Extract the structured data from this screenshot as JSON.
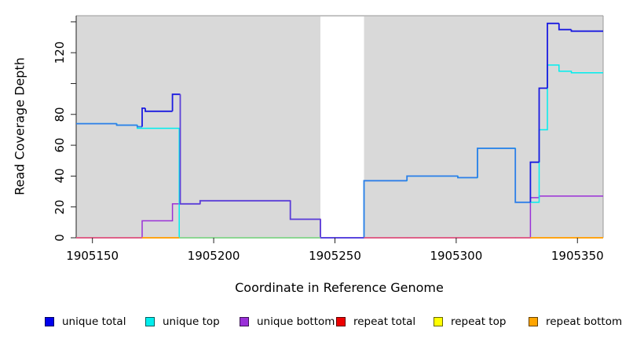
{
  "axes": {
    "x": {
      "title": "Coordinate in Reference Genome",
      "range": [
        1905143.3,
        1905360.6
      ],
      "ticks": [
        1905150,
        1905200,
        1905250,
        1905300,
        1905350
      ]
    },
    "y": {
      "title": "Read Coverage Depth",
      "range": [
        0,
        144
      ],
      "ticks": [
        0,
        20,
        40,
        60,
        80,
        100,
        120,
        140
      ],
      "labeled_ticks": [
        0,
        20,
        40,
        60,
        80,
        120
      ]
    }
  },
  "legend": {
    "items": [
      {
        "label": "unique total",
        "color": "#0000ee"
      },
      {
        "label": "unique top",
        "color": "#00eeee"
      },
      {
        "label": "unique bottom",
        "color": "#9a30d8"
      },
      {
        "label": "repeat total",
        "color": "#ee0000"
      },
      {
        "label": "repeat top",
        "color": "#ffff00"
      },
      {
        "label": "repeat bottom",
        "color": "#ffa500"
      }
    ]
  },
  "colors": {
    "plot_bg": "#d9d9d9",
    "gap_fill": "#ffffff",
    "total_over_top": "#2e7ee8",
    "total_over_bottom": "#5b3fd8",
    "total_pure": "#1a1ae0",
    "zero_when_bottom_zero": "#e0608a",
    "zero_when_top_zero": "#8fd694",
    "zero_when_total_zero": "#5b45e0",
    "zero_when_none_zero": "#ffa216"
  },
  "chart_data": {
    "type": "line",
    "style": "step",
    "title": "",
    "xlabel": "Coordinate in Reference Genome",
    "ylabel": "Read Coverage Depth",
    "xlim": [
      1905143.3,
      1905360.6
    ],
    "ylim": [
      0,
      144
    ],
    "gap_region": [
      1905244,
      1905262
    ],
    "series": [
      {
        "name": "unique total",
        "color": "#1a1ae0",
        "points": [
          [
            1905143.3,
            74
          ],
          [
            1905160,
            73
          ],
          [
            1905168.5,
            72
          ],
          [
            1905170.5,
            84
          ],
          [
            1905171.8,
            82
          ],
          [
            1905183,
            93
          ],
          [
            1905186.2,
            22
          ],
          [
            1905194.4,
            24
          ],
          [
            1905231.6,
            12
          ],
          [
            1905244,
            0
          ],
          [
            1905262,
            37
          ],
          [
            1905279.7,
            40
          ],
          [
            1905300.7,
            39
          ],
          [
            1905308.8,
            58
          ],
          [
            1905324.4,
            23
          ],
          [
            1905330.6,
            49
          ],
          [
            1905334.2,
            97
          ],
          [
            1905337.6,
            139
          ],
          [
            1905342.4,
            135
          ],
          [
            1905347.5,
            134
          ]
        ]
      },
      {
        "name": "unique top",
        "color": "#00eeee",
        "points": [
          [
            1905143.3,
            74
          ],
          [
            1905160,
            73
          ],
          [
            1905168.5,
            71
          ],
          [
            1905185.8,
            0
          ],
          [
            1905262,
            37
          ],
          [
            1905279.7,
            40
          ],
          [
            1905300.7,
            39
          ],
          [
            1905308.8,
            58
          ],
          [
            1905324.4,
            23
          ],
          [
            1905334.2,
            70
          ],
          [
            1905337.6,
            112
          ],
          [
            1905342.4,
            108
          ],
          [
            1905347.5,
            107
          ]
        ]
      },
      {
        "name": "unique bottom",
        "color": "#9a30d8",
        "points": [
          [
            1905143.3,
            0
          ],
          [
            1905170.5,
            11
          ],
          [
            1905183,
            22
          ],
          [
            1905194.4,
            24
          ],
          [
            1905231.6,
            12
          ],
          [
            1905244,
            0
          ],
          [
            1905330.6,
            26
          ],
          [
            1905334.2,
            27
          ]
        ]
      },
      {
        "name": "repeat total",
        "color": "#ee0000",
        "points": [
          [
            1905143.3,
            0
          ]
        ]
      },
      {
        "name": "repeat top",
        "color": "#ffff00",
        "points": [
          [
            1905143.3,
            0
          ]
        ]
      },
      {
        "name": "repeat bottom",
        "color": "#ffa500",
        "points": [
          [
            1905143.3,
            0
          ]
        ]
      }
    ]
  }
}
